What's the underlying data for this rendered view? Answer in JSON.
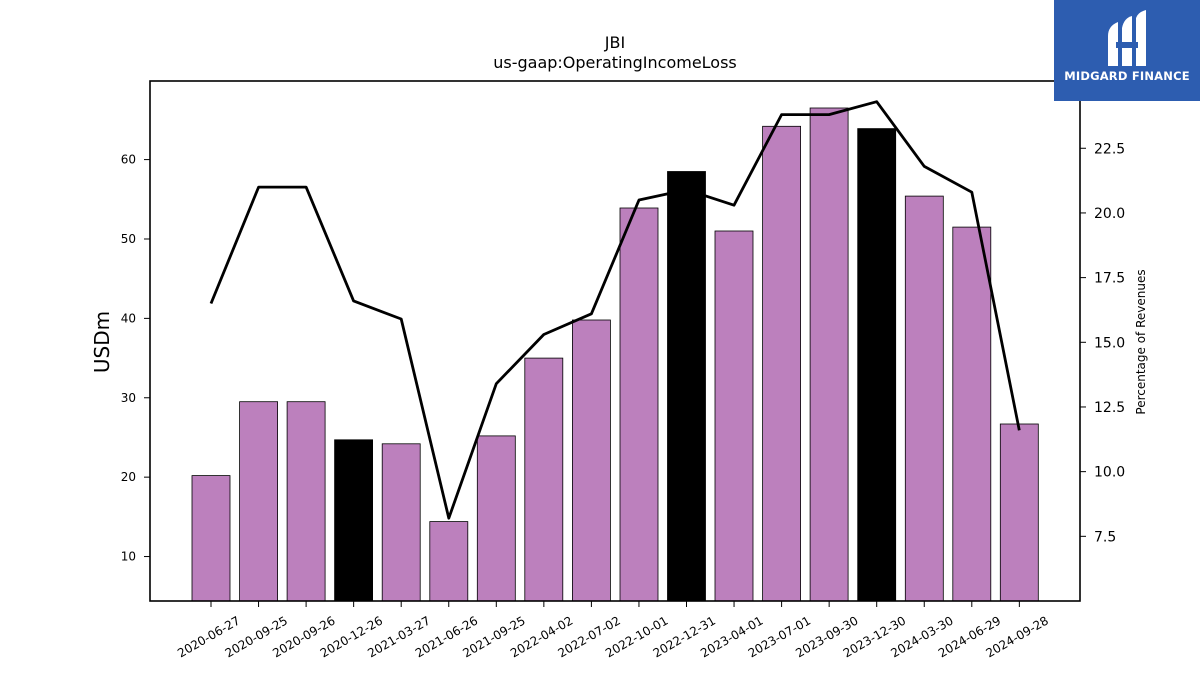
{
  "chart_data": {
    "type": "bar",
    "title": "JBI",
    "subtitle": "us-gaap:OperatingIncomeLoss",
    "ylabel": "USDm",
    "y2label": "Percentage of Revenues",
    "categories": [
      "2020-06-27",
      "2020-09-25",
      "2020-09-26",
      "2020-12-26",
      "2021-03-27",
      "2021-06-26",
      "2021-09-25",
      "2022-04-02",
      "2022-07-02",
      "2022-10-01",
      "2022-12-31",
      "2023-04-01",
      "2023-07-01",
      "2023-09-30",
      "2023-12-30",
      "2024-03-30",
      "2024-06-29",
      "2024-09-28"
    ],
    "series": [
      {
        "type": "bar",
        "axis": "left",
        "values": [
          20.2,
          29.5,
          29.5,
          24.7,
          24.2,
          14.4,
          25.2,
          35.0,
          39.8,
          53.9,
          58.5,
          51.0,
          64.2,
          66.5,
          63.9,
          55.4,
          51.5,
          26.7
        ],
        "colors": [
          "#bc80bd",
          "#bc80bd",
          "#bc80bd",
          "#000000",
          "#bc80bd",
          "#bc80bd",
          "#bc80bd",
          "#bc80bd",
          "#bc80bd",
          "#bc80bd",
          "#000000",
          "#bc80bd",
          "#bc80bd",
          "#bc80bd",
          "#000000",
          "#bc80bd",
          "#bc80bd",
          "#bc80bd"
        ]
      },
      {
        "type": "line",
        "axis": "right",
        "color": "#000000",
        "values": [
          16.5,
          21.0,
          21.0,
          16.6,
          15.9,
          8.2,
          13.4,
          15.3,
          16.1,
          20.5,
          20.9,
          20.3,
          23.8,
          23.8,
          24.3,
          21.8,
          20.8,
          11.6
        ]
      }
    ],
    "ylim": [
      4.4,
      69.9
    ],
    "yticks": [
      10,
      20,
      30,
      40,
      50,
      60
    ],
    "y2lim": [
      5.0,
      25.1
    ],
    "y2ticks": [
      "7.5",
      "10.0",
      "12.5",
      "15.0",
      "17.5",
      "20.0",
      "22.5"
    ],
    "grid": false
  },
  "logo": {
    "text": "MIDGARD FINANCE"
  }
}
